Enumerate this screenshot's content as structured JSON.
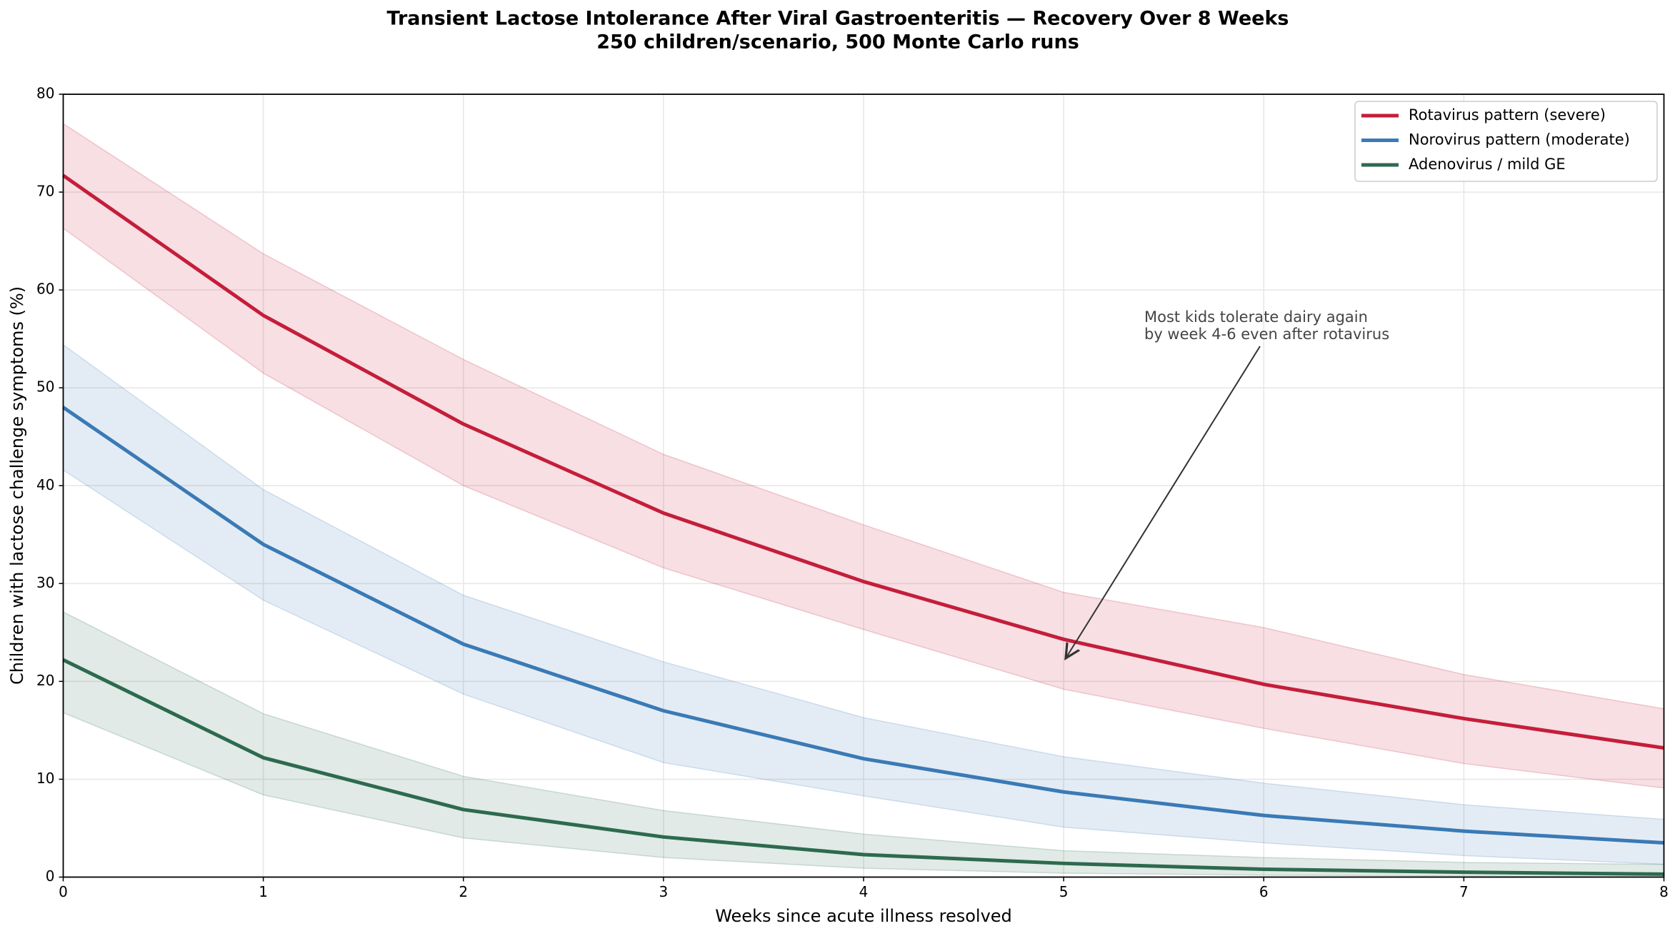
{
  "chart_data": {
    "type": "line",
    "title": "Transient Lactose Intolerance After Viral Gastroenteritis — Recovery Over 8 Weeks",
    "subtitle": "250 children/scenario, 500 Monte Carlo runs",
    "x_label": "Weeks since acute illness resolved",
    "y_label": "Children with lactose challenge symptoms (%)",
    "x": [
      0,
      1,
      2,
      3,
      4,
      5,
      6,
      7,
      8
    ],
    "series": [
      {
        "name": "Rotavirus pattern (severe)",
        "color": "#c41e3a",
        "values": [
          71.7,
          57.4,
          46.3,
          37.2,
          30.2,
          24.3,
          19.7,
          16.2,
          13.2
        ],
        "lower": [
          66.3,
          51.5,
          40.0,
          31.6,
          25.3,
          19.2,
          15.2,
          11.6,
          9.1
        ],
        "upper": [
          77.0,
          63.7,
          52.9,
          43.2,
          36.0,
          29.1,
          25.5,
          20.7,
          17.2
        ]
      },
      {
        "name": "Norovirus pattern (moderate)",
        "color": "#3a7ab5",
        "values": [
          48.0,
          34.0,
          23.8,
          17.0,
          12.1,
          8.7,
          6.3,
          4.7,
          3.5
        ],
        "lower": [
          41.6,
          28.3,
          18.7,
          11.7,
          8.3,
          5.1,
          3.5,
          2.2,
          1.3
        ],
        "upper": [
          54.4,
          39.6,
          28.8,
          22.0,
          16.3,
          12.3,
          9.6,
          7.4,
          5.9
        ]
      },
      {
        "name": "Adenovirus / mild GE",
        "color": "#2d6a4f",
        "values": [
          22.2,
          12.2,
          6.9,
          4.1,
          2.3,
          1.4,
          0.8,
          0.5,
          0.3
        ],
        "lower": [
          16.8,
          8.4,
          4.0,
          2.0,
          0.9,
          0.4,
          0.2,
          0.1,
          0.0
        ],
        "upper": [
          27.1,
          16.7,
          10.3,
          6.8,
          4.4,
          2.7,
          2.0,
          1.5,
          1.3
        ]
      }
    ],
    "annotation": [
      "Most kids tolerate dairy again",
      "by week 4-6 even after rotavirus"
    ],
    "xlim": [
      0,
      8
    ],
    "xticks": [
      0,
      1,
      2,
      3,
      4,
      5,
      6,
      7,
      8
    ],
    "ylim": [
      0,
      80
    ],
    "yticks": [
      0,
      10,
      20,
      30,
      40,
      50,
      60,
      70,
      80
    ],
    "grid": true,
    "legend": "upper right"
  }
}
